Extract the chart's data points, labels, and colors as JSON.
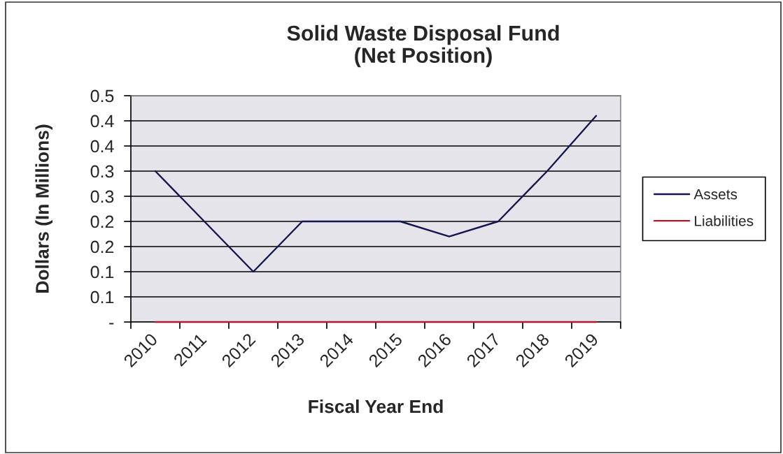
{
  "chart_data": {
    "type": "line",
    "title": "Solid Waste Disposal Fund\n(Net Position)",
    "xlabel": "Fiscal Year End",
    "ylabel": "Dollars (In Millions)",
    "categories": [
      "2010",
      "2011",
      "2012",
      "2013",
      "2014",
      "2015",
      "2016",
      "2017",
      "2018",
      "2019"
    ],
    "series": [
      {
        "name": "Assets",
        "color": "#16164e",
        "values": [
          0.3,
          0.2,
          0.1,
          0.2,
          0.2,
          0.2,
          0.17,
          0.2,
          0.3,
          0.41
        ]
      },
      {
        "name": "Liabilities",
        "color": "#b0182c",
        "values": [
          0,
          0,
          0,
          0,
          0,
          0,
          0,
          0,
          0,
          0
        ]
      }
    ],
    "ylim": [
      0,
      0.45
    ],
    "yticks": [
      {
        "value": 0,
        "label": "-"
      },
      {
        "value": 0.05,
        "label": "0.1"
      },
      {
        "value": 0.1,
        "label": "0.1"
      },
      {
        "value": 0.15,
        "label": "0.2"
      },
      {
        "value": 0.2,
        "label": "0.2"
      },
      {
        "value": 0.25,
        "label": "0.3"
      },
      {
        "value": 0.3,
        "label": "0.3"
      },
      {
        "value": 0.35,
        "label": "0.4"
      },
      {
        "value": 0.4,
        "label": "0.4"
      },
      {
        "value": 0.45,
        "label": "0.5"
      }
    ],
    "grid": "y",
    "legend": "right"
  }
}
